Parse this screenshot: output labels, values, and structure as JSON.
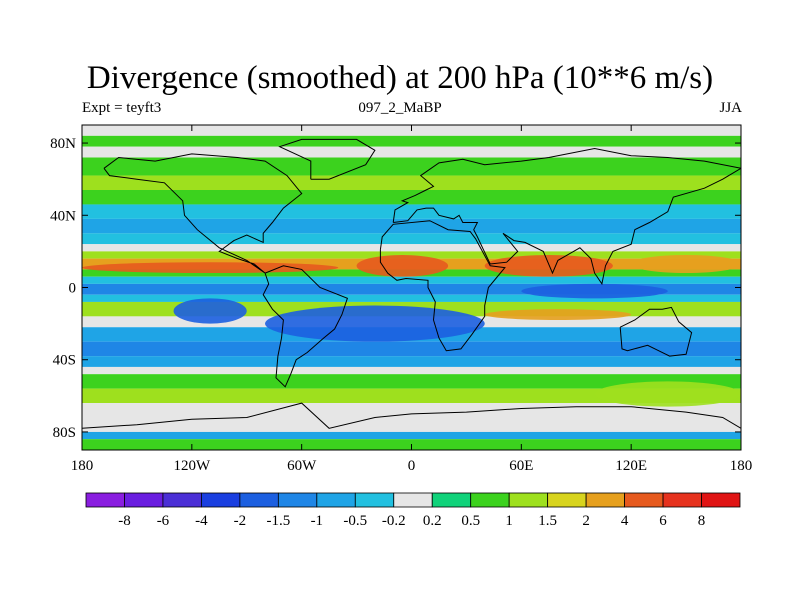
{
  "title": "Divergence (smoothed) at 200 hPa (10**6 m/s)",
  "subtitle_left": "Expt = teyft3",
  "subtitle_center": "097_2_MaBP",
  "subtitle_right": "JJA",
  "chart_data": {
    "type": "heatmap",
    "title": "Divergence (smoothed) at 200 hPa (10**6 m/s)",
    "variable": "Divergence (smoothed)",
    "level": "200 hPa",
    "units": "10**6 m/s",
    "x_axis": {
      "range": [
        -180,
        180
      ],
      "ticks": [
        {
          "value": -180,
          "label": "180"
        },
        {
          "value": -120,
          "label": "120W"
        },
        {
          "value": -60,
          "label": "60W"
        },
        {
          "value": 0,
          "label": "0"
        },
        {
          "value": 60,
          "label": "60E"
        },
        {
          "value": 120,
          "label": "120E"
        },
        {
          "value": 180,
          "label": "180"
        }
      ]
    },
    "y_axis": {
      "range": [
        -90,
        90
      ],
      "ticks": [
        {
          "value": 80,
          "label": "80N"
        },
        {
          "value": 40,
          "label": "40N"
        },
        {
          "value": 0,
          "label": "0"
        },
        {
          "value": -40,
          "label": "40S"
        },
        {
          "value": -80,
          "label": "80S"
        }
      ]
    },
    "colorbar": {
      "labels": [
        "-8",
        "-6",
        "-4",
        "-2",
        "-1.5",
        "-1",
        "-0.5",
        "-0.2",
        "0.2",
        "0.5",
        "1",
        "1.5",
        "2",
        "4",
        "6",
        "8"
      ],
      "colors": [
        "#8a1ee0",
        "#6a1ee0",
        "#4b2fd6",
        "#1a3fe0",
        "#1c5fe0",
        "#1f86e6",
        "#1fa4e6",
        "#22c0e0",
        "#e6e6e6",
        "#10d27a",
        "#3cd21e",
        "#9ee01e",
        "#d8d41e",
        "#e6a01e",
        "#e65a1e",
        "#e6321e",
        "#e01414"
      ]
    },
    "bands": [
      {
        "lat": [
          90,
          84
        ],
        "value": 0
      },
      {
        "lat": [
          84,
          78
        ],
        "value": 0.5
      },
      {
        "lat": [
          78,
          72
        ],
        "value": 0
      },
      {
        "lat": [
          72,
          62
        ],
        "value": 0.5
      },
      {
        "lat": [
          62,
          54
        ],
        "value": 1
      },
      {
        "lat": [
          54,
          46
        ],
        "value": 0.5
      },
      {
        "lat": [
          46,
          38
        ],
        "value": -0.5
      },
      {
        "lat": [
          38,
          30
        ],
        "value": -1
      },
      {
        "lat": [
          30,
          24
        ],
        "value": -0.5
      },
      {
        "lat": [
          24,
          20
        ],
        "value": 0
      },
      {
        "lat": [
          20,
          16
        ],
        "value": 1
      },
      {
        "lat": [
          16,
          10
        ],
        "value": 2
      },
      {
        "lat": [
          10,
          6
        ],
        "value": 0.5
      },
      {
        "lat": [
          6,
          2
        ],
        "value": -0.5
      },
      {
        "lat": [
          2,
          -4
        ],
        "value": -1.5
      },
      {
        "lat": [
          -4,
          -8
        ],
        "value": -0.5
      },
      {
        "lat": [
          -8,
          -16
        ],
        "value": 1
      },
      {
        "lat": [
          -16,
          -22
        ],
        "value": 0
      },
      {
        "lat": [
          -22,
          -30
        ],
        "value": -1
      },
      {
        "lat": [
          -30,
          -38
        ],
        "value": -1.5
      },
      {
        "lat": [
          -38,
          -44
        ],
        "value": -1
      },
      {
        "lat": [
          -44,
          -48
        ],
        "value": 0
      },
      {
        "lat": [
          -48,
          -56
        ],
        "value": 0.5
      },
      {
        "lat": [
          -56,
          -64
        ],
        "value": 1
      },
      {
        "lat": [
          -64,
          -72
        ],
        "value": 0
      },
      {
        "lat": [
          -72,
          -80
        ],
        "value": 0
      },
      {
        "lat": [
          -80,
          -84
        ],
        "value": -1
      },
      {
        "lat": [
          -84,
          -90
        ],
        "value": 0.5
      }
    ],
    "features": [
      {
        "name": "nh-subtropical-divergence",
        "lon": [
          -180,
          -40
        ],
        "lat": [
          14,
          8
        ],
        "value": 4
      },
      {
        "name": "africa-divergence",
        "lon": [
          -30,
          20
        ],
        "lat": [
          18,
          6
        ],
        "value": 4
      },
      {
        "name": "asia-divergence",
        "lon": [
          40,
          110
        ],
        "lat": [
          18,
          6
        ],
        "value": 4
      },
      {
        "name": "west-pacific-divergence",
        "lon": [
          120,
          180
        ],
        "lat": [
          18,
          8
        ],
        "value": 2
      },
      {
        "name": "equatorial-convergence",
        "lon": [
          -80,
          40
        ],
        "lat": [
          -10,
          -30
        ],
        "value": -2
      },
      {
        "name": "sh-convergence-core",
        "lon": [
          -130,
          -90
        ],
        "lat": [
          -6,
          -20
        ],
        "value": -2
      },
      {
        "name": "equatorial-convergence-east",
        "lon": [
          60,
          140
        ],
        "lat": [
          2,
          -6
        ],
        "value": -2
      },
      {
        "name": "southern-ocean-divergence",
        "lon": [
          100,
          180
        ],
        "lat": [
          -52,
          -66
        ],
        "value": 1
      },
      {
        "name": "indian-ocean-divergence",
        "lon": [
          40,
          120
        ],
        "lat": [
          -12,
          -18
        ],
        "value": 2
      }
    ]
  }
}
